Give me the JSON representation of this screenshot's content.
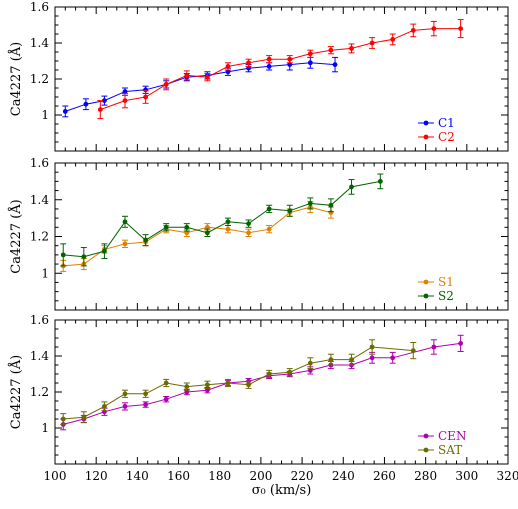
{
  "chart_data": [
    {
      "type": "line",
      "ylabel": "Ca4227 (Å)",
      "xlim": [
        100,
        320
      ],
      "ylim": [
        0.8,
        1.6
      ],
      "xticks": [
        100,
        120,
        140,
        160,
        180,
        200,
        220,
        240,
        260,
        280,
        300,
        320
      ],
      "yticks": [
        1,
        1.2,
        1.4,
        1.6
      ],
      "legend_position": "bottom-right",
      "series": [
        {
          "name": "C1",
          "color": "#0000ff",
          "x": [
            105,
            115,
            124,
            134,
            144,
            154,
            164,
            174,
            184,
            194,
            204,
            214,
            224,
            236
          ],
          "y": [
            1.02,
            1.06,
            1.08,
            1.13,
            1.14,
            1.17,
            1.21,
            1.22,
            1.24,
            1.26,
            1.27,
            1.28,
            1.29,
            1.28
          ],
          "err": [
            0.03,
            0.03,
            0.025,
            0.02,
            0.02,
            0.02,
            0.02,
            0.02,
            0.02,
            0.02,
            0.02,
            0.03,
            0.03,
            0.04
          ]
        },
        {
          "name": "C2",
          "color": "#ff0000",
          "x": [
            122,
            134,
            144,
            154,
            164,
            174,
            184,
            194,
            204,
            214,
            224,
            234,
            244,
            254,
            264,
            274,
            284,
            297
          ],
          "y": [
            1.03,
            1.08,
            1.1,
            1.17,
            1.22,
            1.21,
            1.27,
            1.29,
            1.31,
            1.31,
            1.34,
            1.36,
            1.37,
            1.4,
            1.42,
            1.47,
            1.48,
            1.48
          ],
          "err": [
            0.05,
            0.04,
            0.035,
            0.03,
            0.025,
            0.02,
            0.02,
            0.02,
            0.02,
            0.02,
            0.02,
            0.02,
            0.025,
            0.03,
            0.03,
            0.035,
            0.04,
            0.05
          ]
        }
      ]
    },
    {
      "type": "line",
      "ylabel": "Ca4227 (Å)",
      "xlim": [
        100,
        320
      ],
      "ylim": [
        0.8,
        1.6
      ],
      "xticks": [
        100,
        120,
        140,
        160,
        180,
        200,
        220,
        240,
        260,
        280,
        300,
        320
      ],
      "yticks": [
        1,
        1.2,
        1.4,
        1.6
      ],
      "legend_position": "bottom-right",
      "series": [
        {
          "name": "S1",
          "color": "#e08000",
          "x": [
            104,
            114,
            124,
            134,
            144,
            154,
            164,
            174,
            184,
            194,
            204,
            214,
            224,
            234
          ],
          "y": [
            1.04,
            1.05,
            1.13,
            1.16,
            1.17,
            1.24,
            1.22,
            1.25,
            1.24,
            1.22,
            1.24,
            1.33,
            1.36,
            1.33
          ],
          "err": [
            0.03,
            0.03,
            0.02,
            0.02,
            0.02,
            0.02,
            0.02,
            0.02,
            0.02,
            0.02,
            0.02,
            0.02,
            0.03,
            0.03
          ]
        },
        {
          "name": "S2",
          "color": "#006400",
          "x": [
            104,
            114,
            124,
            134,
            144,
            154,
            164,
            174,
            184,
            194,
            204,
            214,
            224,
            234,
            244,
            258
          ],
          "y": [
            1.1,
            1.09,
            1.12,
            1.28,
            1.18,
            1.25,
            1.25,
            1.22,
            1.28,
            1.27,
            1.35,
            1.34,
            1.38,
            1.37,
            1.47,
            1.5
          ],
          "err": [
            0.06,
            0.05,
            0.04,
            0.03,
            0.03,
            0.02,
            0.02,
            0.02,
            0.02,
            0.02,
            0.02,
            0.03,
            0.03,
            0.035,
            0.04,
            0.04
          ]
        }
      ]
    },
    {
      "type": "line",
      "xlabel": "σ₀ (km/s)",
      "ylabel": "Ca4227 (Å)",
      "xlim": [
        100,
        320
      ],
      "ylim": [
        0.8,
        1.6
      ],
      "xticks": [
        100,
        120,
        140,
        160,
        180,
        200,
        220,
        240,
        260,
        280,
        300,
        320
      ],
      "yticks": [
        1,
        1.2,
        1.4,
        1.6
      ],
      "legend_position": "bottom-right",
      "series": [
        {
          "name": "CEN",
          "color": "#b000b0",
          "x": [
            104,
            114,
            124,
            134,
            144,
            154,
            164,
            174,
            184,
            194,
            204,
            214,
            224,
            234,
            244,
            254,
            264,
            284,
            297
          ],
          "y": [
            1.02,
            1.05,
            1.09,
            1.12,
            1.13,
            1.16,
            1.2,
            1.21,
            1.25,
            1.26,
            1.29,
            1.3,
            1.32,
            1.35,
            1.35,
            1.39,
            1.39,
            1.45,
            1.47
          ],
          "err": [
            0.03,
            0.02,
            0.02,
            0.02,
            0.015,
            0.015,
            0.015,
            0.015,
            0.015,
            0.015,
            0.015,
            0.015,
            0.02,
            0.02,
            0.02,
            0.03,
            0.03,
            0.04,
            0.045
          ]
        },
        {
          "name": "SAT",
          "color": "#6b6b00",
          "x": [
            104,
            114,
            124,
            134,
            144,
            154,
            164,
            174,
            184,
            194,
            204,
            214,
            224,
            234,
            244,
            254,
            274
          ],
          "y": [
            1.05,
            1.06,
            1.12,
            1.19,
            1.19,
            1.25,
            1.23,
            1.24,
            1.25,
            1.24,
            1.3,
            1.31,
            1.36,
            1.38,
            1.38,
            1.45,
            1.43
          ],
          "err": [
            0.03,
            0.03,
            0.025,
            0.02,
            0.02,
            0.02,
            0.02,
            0.02,
            0.02,
            0.02,
            0.02,
            0.02,
            0.03,
            0.03,
            0.03,
            0.04,
            0.045
          ]
        }
      ]
    }
  ]
}
